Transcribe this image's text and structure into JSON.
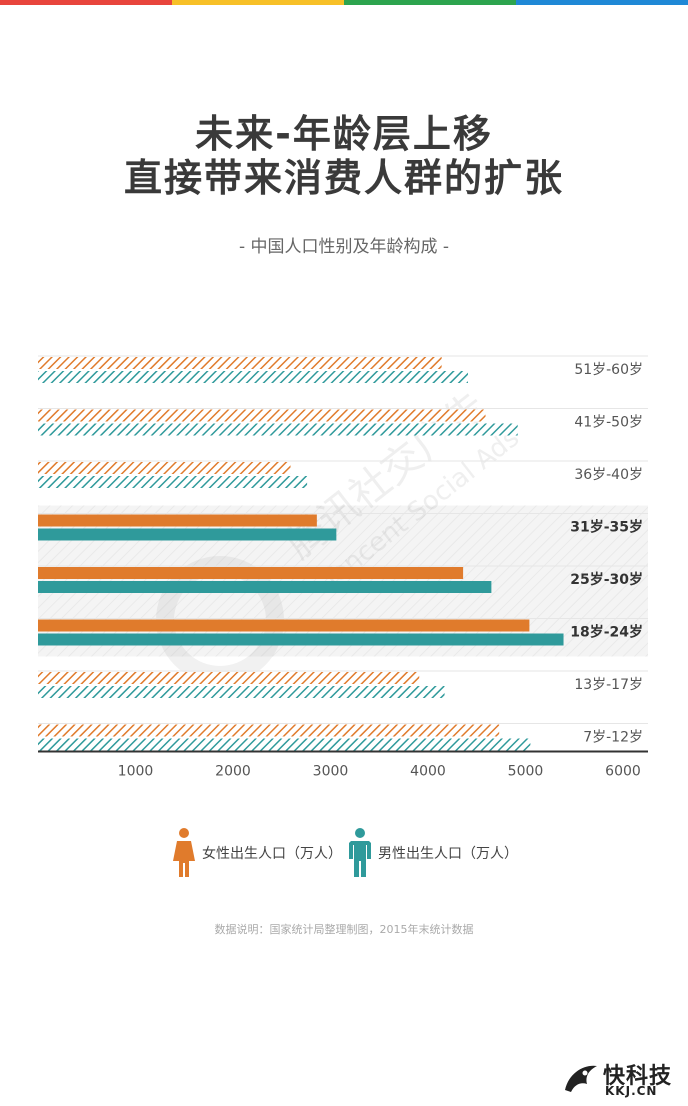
{
  "brand_colors": [
    "#e8453c",
    "#f7c028",
    "#2da44e",
    "#1f88d6"
  ],
  "title_line1": "未来-年龄层上移",
  "title_line2": "直接带来消费人群的扩张",
  "chart_data": {
    "type": "bar",
    "orientation": "horizontal",
    "subtitle": "- 中国人口性别及年龄构成 -",
    "categories": [
      "51岁-60岁",
      "41岁-50岁",
      "36岁-40岁",
      "31岁-35岁",
      "25岁-30岁",
      "18岁-24岁",
      "13岁-17岁",
      "7岁-12岁"
    ],
    "highlighted": [
      false,
      false,
      false,
      true,
      true,
      true,
      false,
      false
    ],
    "series": [
      {
        "name": "女性出生人口（万人）",
        "color": "#e07b2c",
        "values": [
          4140,
          4590,
          2590,
          2860,
          4360,
          5040,
          3910,
          4730
        ]
      },
      {
        "name": "男性出生人口（万人）",
        "color": "#2f9a9b",
        "values": [
          4410,
          4920,
          2760,
          3060,
          4650,
          5390,
          4170,
          5050
        ]
      }
    ],
    "xticks": [
      1000,
      2000,
      3000,
      4000,
      5000,
      6000
    ],
    "xlim": [
      0,
      6300
    ],
    "legend_position": "bottom"
  },
  "footnote": "数据说明：国家统计局整理制图，2015年末统计数据",
  "watermark": {
    "line1": "腾讯社交广告",
    "line2": "Tencent Social Ads"
  },
  "logo": {
    "name": "快科技",
    "domain": "KKJ.CN"
  }
}
